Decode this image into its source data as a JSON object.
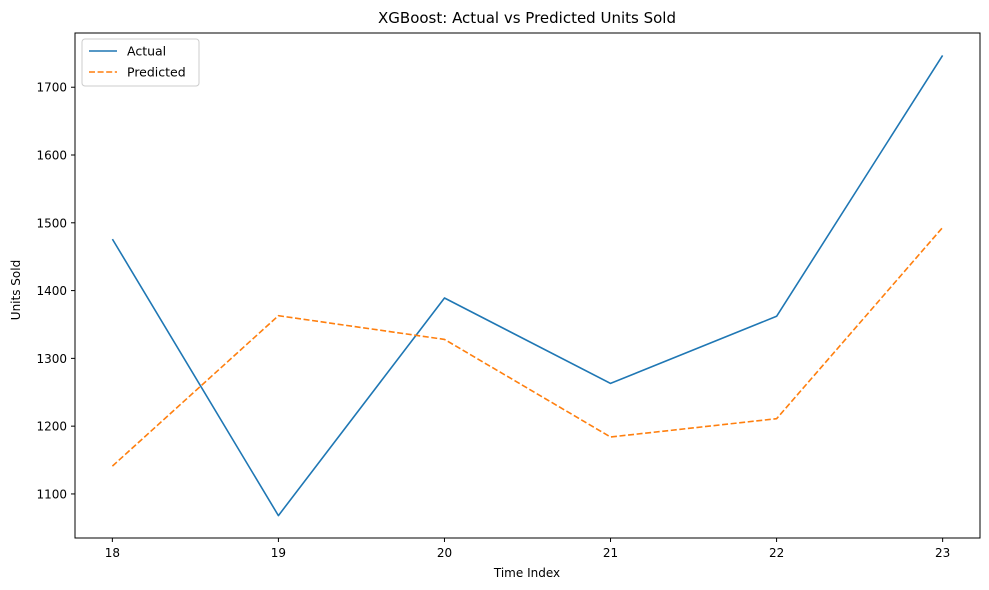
{
  "chart_data": {
    "type": "line",
    "title": "XGBoost: Actual vs Predicted Units Sold",
    "xlabel": "Time Index",
    "ylabel": "Units Sold",
    "x": [
      18,
      19,
      20,
      21,
      22,
      23
    ],
    "xlim": [
      17.775,
      23.225
    ],
    "ylim": [
      1035,
      1780
    ],
    "yticks": [
      1100,
      1200,
      1300,
      1400,
      1500,
      1600,
      1700
    ],
    "grid": false,
    "legend_position": "top-left",
    "series": [
      {
        "name": "Actual",
        "color": "#1f77b4",
        "style": "solid",
        "values": [
          1476,
          1068,
          1389,
          1263,
          1362,
          1747
        ]
      },
      {
        "name": "Predicted",
        "color": "#ff7f0e",
        "style": "dashed",
        "values": [
          1141,
          1363,
          1328,
          1184,
          1211,
          1493
        ]
      }
    ]
  }
}
